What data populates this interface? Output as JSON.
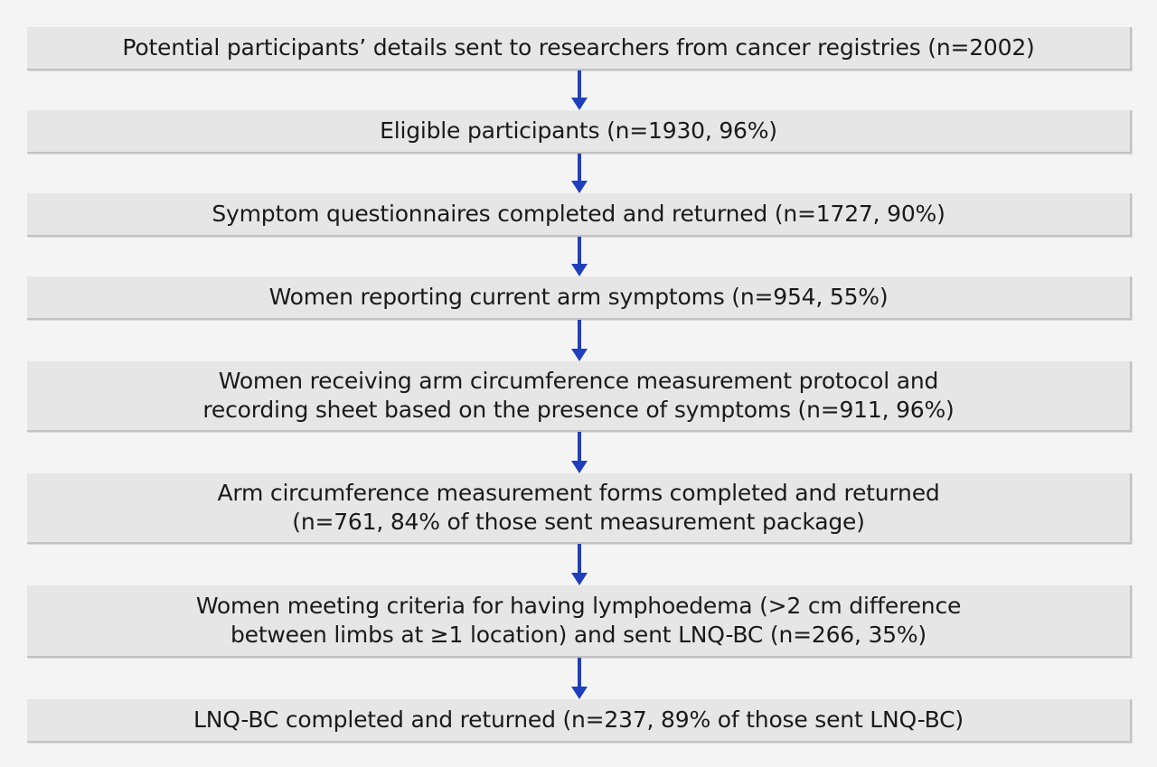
{
  "flowchart": {
    "steps": [
      {
        "text": "Potential participants’ details sent to researchers from cancer registries (n=2002)"
      },
      {
        "text": "Eligible participants (n=1930, 96%)"
      },
      {
        "text": "Symptom questionnaires completed and returned (n=1727, 90%)"
      },
      {
        "text": "Women reporting current arm symptoms (n=954, 55%)"
      },
      {
        "text": "Women receiving arm circumference measurement protocol and\nrecording sheet based on the presence of symptoms (n=911, 96%)"
      },
      {
        "text": "Arm circumference measurement forms completed and returned\n(n=761, 84% of those sent measurement package)"
      },
      {
        "text": "Women meeting criteria for having lymphoedema (>2 cm difference\nbetween limbs at ≥1 location) and sent LNQ-BC (n=266, 35%)"
      },
      {
        "text": "LNQ-BC completed and returned (n=237, 89% of those sent LNQ-BC)"
      }
    ],
    "arrow_color": "#1f3fbf",
    "box_color": "#e6e6e6"
  }
}
